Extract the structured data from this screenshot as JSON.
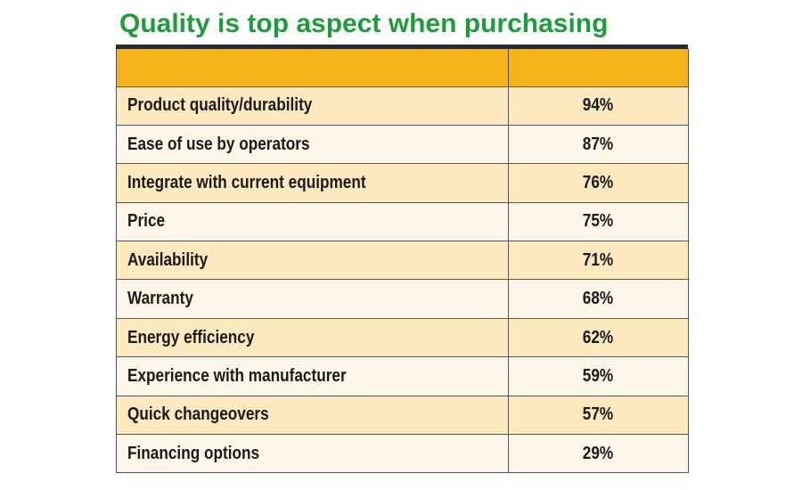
{
  "title": "Quality is top aspect when purchasing",
  "chart_data": {
    "type": "table",
    "title": "Quality is top aspect when purchasing",
    "columns": [
      "",
      ""
    ],
    "rows": [
      {
        "label": "Product quality/durability",
        "value": "94%"
      },
      {
        "label": "Ease of use by operators",
        "value": "87%"
      },
      {
        "label": "Integrate with current equipment",
        "value": "76%"
      },
      {
        "label": "Price",
        "value": "75%"
      },
      {
        "label": "Availability",
        "value": "71%"
      },
      {
        "label": "Warranty",
        "value": "68%"
      },
      {
        "label": "Energy efficiency",
        "value": "62%"
      },
      {
        "label": "Experience with manufacturer",
        "value": "59%"
      },
      {
        "label": "Quick changeovers",
        "value": "57%"
      },
      {
        "label": "Financing options",
        "value": "29%"
      }
    ],
    "values": [
      94,
      87,
      76,
      75,
      71,
      68,
      62,
      59,
      57,
      29
    ],
    "colors": {
      "title": "#1e9b3a",
      "header": "#f5b21a",
      "row_odd": "#fde8c0",
      "row_even": "#fef7e9"
    }
  }
}
